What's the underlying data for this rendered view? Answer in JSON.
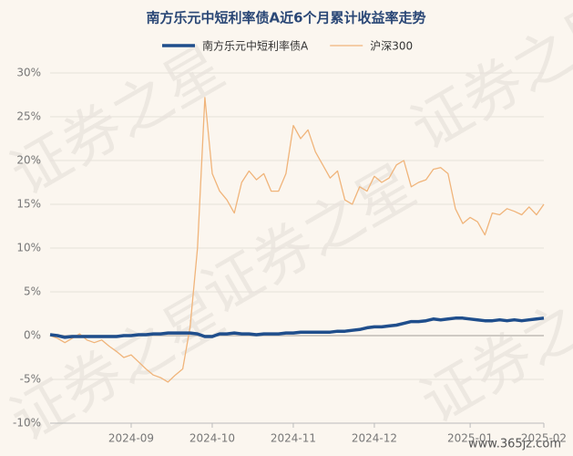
{
  "chart_data": {
    "type": "line",
    "title": "南方乐元中短利率债A近6个月累计收益率走势",
    "watermark": "证券之星",
    "footer": "www.365jz.com",
    "categories": [
      null,
      null,
      null,
      null,
      null,
      null,
      null,
      null,
      null,
      null,
      null,
      "2024-09",
      null,
      null,
      null,
      null,
      null,
      null,
      null,
      null,
      null,
      null,
      "2024-10",
      null,
      null,
      null,
      null,
      null,
      null,
      null,
      null,
      null,
      null,
      "2024-11",
      null,
      null,
      null,
      null,
      null,
      null,
      null,
      null,
      null,
      null,
      "2024-12",
      null,
      null,
      null,
      null,
      null,
      null,
      null,
      null,
      null,
      null,
      null,
      null,
      "2025-01",
      null,
      null,
      null,
      null,
      null,
      null,
      null,
      null,
      null,
      "2025-02"
    ],
    "series": [
      {
        "name": "南方乐元中短利率债A",
        "color": "#1f4e8c",
        "width": 3.5,
        "values": [
          0.1,
          0.0,
          -0.2,
          -0.1,
          -0.1,
          -0.1,
          -0.1,
          -0.1,
          -0.1,
          -0.1,
          0.0,
          0.0,
          0.1,
          0.1,
          0.2,
          0.2,
          0.3,
          0.3,
          0.3,
          0.3,
          0.2,
          -0.1,
          -0.1,
          0.2,
          0.2,
          0.3,
          0.2,
          0.2,
          0.1,
          0.2,
          0.2,
          0.2,
          0.3,
          0.3,
          0.4,
          0.4,
          0.4,
          0.4,
          0.4,
          0.5,
          0.5,
          0.6,
          0.7,
          0.9,
          1.0,
          1.0,
          1.1,
          1.2,
          1.4,
          1.6,
          1.6,
          1.7,
          1.9,
          1.8,
          1.9,
          2.0,
          2.0,
          1.9,
          1.8,
          1.7,
          1.7,
          1.8,
          1.7,
          1.8,
          1.7,
          1.8,
          1.9,
          2.0
        ]
      },
      {
        "name": "沪深300",
        "color": "#f0b47a",
        "width": 1.3,
        "values": [
          0,
          -0.3,
          -0.8,
          -0.3,
          0.2,
          -0.5,
          -0.8,
          -0.5,
          -1.2,
          -1.8,
          -2.5,
          -2.2,
          -3.0,
          -3.8,
          -4.5,
          -4.8,
          -5.3,
          -4.5,
          -3.8,
          1.0,
          10,
          27.2,
          18.5,
          16.5,
          15.5,
          14.0,
          17.5,
          18.8,
          17.8,
          18.5,
          16.5,
          16.5,
          18.5,
          24.0,
          22.5,
          23.5,
          21.0,
          19.5,
          18.0,
          18.8,
          15.5,
          15.0,
          17.0,
          16.5,
          18.2,
          17.5,
          18.0,
          19.5,
          20.0,
          17.0,
          17.5,
          17.8,
          19.0,
          19.2,
          18.5,
          14.5,
          12.8,
          13.5,
          13.0,
          11.5,
          14.0,
          13.8,
          14.5,
          14.2,
          13.8,
          14.7,
          13.8,
          15.0
        ]
      }
    ],
    "ylim": [
      -10,
      30
    ],
    "yticks": [
      {
        "value": -10,
        "label": "-10%"
      },
      {
        "value": -5,
        "label": "-5%"
      },
      {
        "value": 0,
        "label": "0%"
      },
      {
        "value": 5,
        "label": "5%"
      },
      {
        "value": 10,
        "label": "10%"
      },
      {
        "value": 15,
        "label": "15%"
      },
      {
        "value": 20,
        "label": "20%"
      },
      {
        "value": 25,
        "label": "25%"
      },
      {
        "value": 30,
        "label": "30%"
      }
    ],
    "grid": true
  }
}
